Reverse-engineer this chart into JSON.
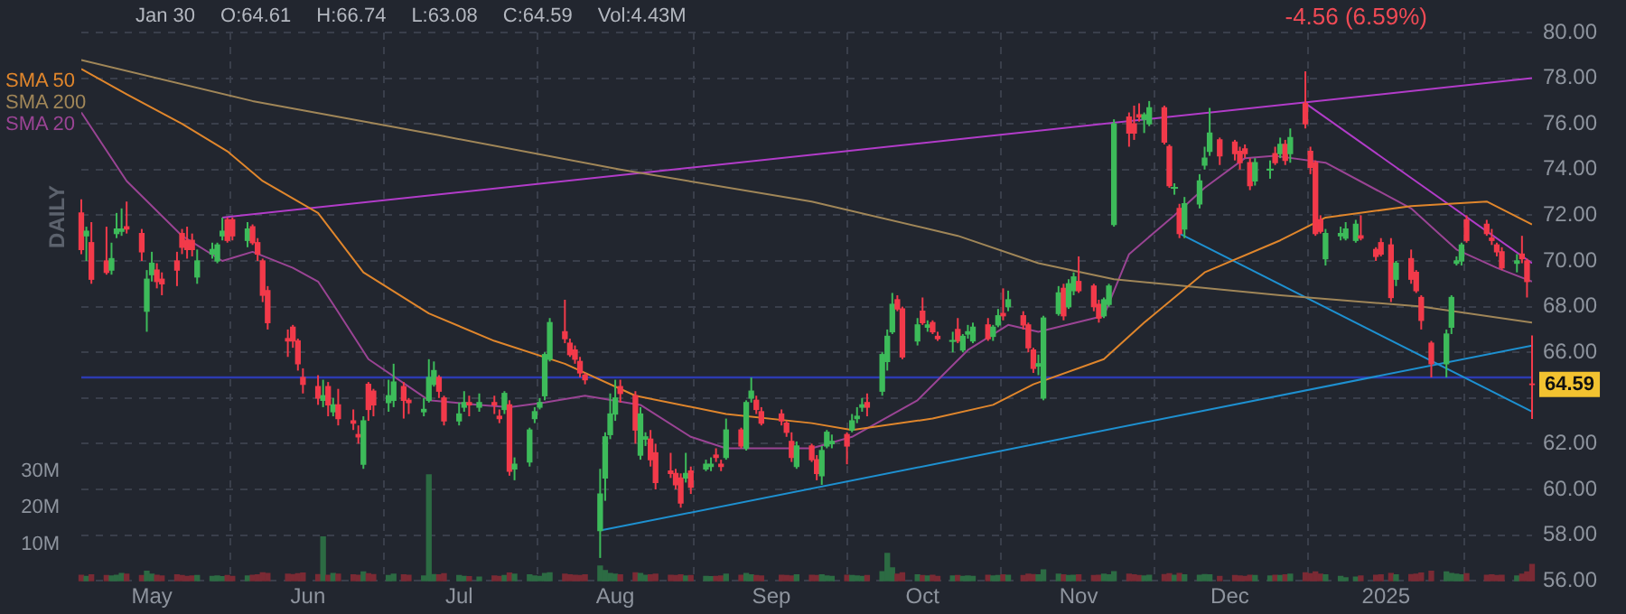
{
  "chart_data": {
    "type": "candlestick",
    "subtitle": "-4.56 (6.59%)",
    "annotations": [
      "Jan 30",
      "O:64.61",
      "H:66.74",
      "L:63.08",
      "C:64.59",
      "Vol:4.43M",
      {
        "text": "64.59",
        "x": "2025-01-30",
        "y": 64.59
      },
      "DAILY"
    ],
    "x": [
      "2024-04-17",
      "2024-04-18",
      "2024-04-19",
      "2024-04-22",
      "2024-04-23",
      "2024-04-24",
      "2024-04-25",
      "2024-04-26",
      "2024-04-29",
      "2024-04-30",
      "2024-05-01",
      "2024-05-02",
      "2024-05-03",
      "2024-05-06",
      "2024-05-07",
      "2024-05-08",
      "2024-05-09",
      "2024-05-10",
      "2024-05-13",
      "2024-05-14",
      "2024-05-15",
      "2024-05-16",
      "2024-05-17",
      "2024-05-20",
      "2024-05-21",
      "2024-05-22",
      "2024-05-23",
      "2024-05-24",
      "2024-05-28",
      "2024-05-29",
      "2024-05-30",
      "2024-05-31",
      "2024-06-03",
      "2024-06-04",
      "2024-06-05",
      "2024-06-06",
      "2024-06-07",
      "2024-06-10",
      "2024-06-11",
      "2024-06-12",
      "2024-06-13",
      "2024-06-14",
      "2024-06-17",
      "2024-06-18",
      "2024-06-20",
      "2024-06-21",
      "2024-06-24",
      "2024-06-25",
      "2024-06-26",
      "2024-06-27",
      "2024-06-28",
      "2024-07-01",
      "2024-07-02",
      "2024-07-03",
      "2024-07-05",
      "2024-07-08",
      "2024-07-09",
      "2024-07-10",
      "2024-07-11",
      "2024-07-12",
      "2024-07-15",
      "2024-07-16",
      "2024-07-17",
      "2024-07-18",
      "2024-07-19",
      "2024-07-22",
      "2024-07-23",
      "2024-07-24",
      "2024-07-25",
      "2024-07-26",
      "2024-07-29",
      "2024-07-30",
      "2024-07-31",
      "2024-08-01",
      "2024-08-02",
      "2024-08-05",
      "2024-08-06",
      "2024-08-07",
      "2024-08-08",
      "2024-08-09",
      "2024-08-12",
      "2024-08-13",
      "2024-08-14",
      "2024-08-15",
      "2024-08-16",
      "2024-08-19",
      "2024-08-20",
      "2024-08-21",
      "2024-08-22",
      "2024-08-23",
      "2024-08-26",
      "2024-08-27",
      "2024-08-28",
      "2024-08-29",
      "2024-08-30",
      "2024-09-03",
      "2024-09-04",
      "2024-09-05",
      "2024-09-06",
      "2024-09-09",
      "2024-09-10",
      "2024-09-11",
      "2024-09-12",
      "2024-09-13",
      "2024-09-16",
      "2024-09-17",
      "2024-09-18",
      "2024-09-19",
      "2024-09-20",
      "2024-09-23",
      "2024-09-24",
      "2024-09-25",
      "2024-09-26",
      "2024-09-27",
      "2024-09-30",
      "2024-10-01",
      "2024-10-02",
      "2024-10-03",
      "2024-10-04",
      "2024-10-07",
      "2024-10-08",
      "2024-10-09",
      "2024-10-10",
      "2024-10-11",
      "2024-10-14",
      "2024-10-15",
      "2024-10-16",
      "2024-10-17",
      "2024-10-18",
      "2024-10-21",
      "2024-10-22",
      "2024-10-23",
      "2024-10-24",
      "2024-10-25",
      "2024-10-28",
      "2024-10-29",
      "2024-10-30",
      "2024-10-31",
      "2024-11-01",
      "2024-11-04",
      "2024-11-05",
      "2024-11-06",
      "2024-11-07",
      "2024-11-08",
      "2024-11-11",
      "2024-11-12",
      "2024-11-13",
      "2024-11-14",
      "2024-11-15",
      "2024-11-18",
      "2024-11-19",
      "2024-11-20",
      "2024-11-21",
      "2024-11-22",
      "2024-11-25",
      "2024-11-26",
      "2024-11-27",
      "2024-11-29",
      "2024-12-02",
      "2024-12-03",
      "2024-12-04",
      "2024-12-05",
      "2024-12-06",
      "2024-12-09",
      "2024-12-10",
      "2024-12-11",
      "2024-12-12",
      "2024-12-13",
      "2024-12-16",
      "2024-12-17",
      "2024-12-18",
      "2024-12-19",
      "2024-12-20",
      "2024-12-23",
      "2024-12-24",
      "2024-12-26",
      "2024-12-27",
      "2024-12-30",
      "2024-12-31",
      "2025-01-02",
      "2025-01-03",
      "2025-01-06",
      "2025-01-07",
      "2025-01-08",
      "2025-01-10",
      "2025-01-13",
      "2025-01-14",
      "2025-01-15",
      "2025-01-16",
      "2025-01-17",
      "2025-01-21",
      "2025-01-22",
      "2025-01-23",
      "2025-01-24",
      "2025-01-27",
      "2025-01-28",
      "2025-01-29",
      "2025-01-30"
    ],
    "ohlc": [
      [
        72.1,
        72.7,
        70.3,
        70.5
      ],
      [
        71.1,
        71.5,
        70.0,
        71.3
      ],
      [
        70.8,
        71.7,
        69.0,
        69.2
      ],
      [
        70.0,
        71.5,
        69.4,
        69.5
      ],
      [
        69.6,
        70.8,
        69.4,
        70.1
      ],
      [
        71.2,
        72.1,
        71.0,
        71.4
      ],
      [
        71.3,
        72.3,
        71.1,
        71.4
      ],
      [
        71.5,
        72.6,
        71.2,
        71.4
      ],
      [
        71.2,
        71.4,
        70.0,
        70.4
      ],
      [
        67.8,
        69.6,
        66.9,
        69.2
      ],
      [
        69.4,
        70.4,
        69.1,
        69.9
      ],
      [
        69.6,
        69.9,
        68.8,
        69.1
      ],
      [
        69.2,
        69.5,
        68.5,
        69.0
      ],
      [
        70.0,
        70.4,
        68.9,
        69.6
      ],
      [
        71.2,
        71.4,
        70.3,
        70.6
      ],
      [
        70.9,
        71.5,
        70.1,
        70.5
      ],
      [
        70.9,
        71.2,
        70.2,
        70.5
      ],
      [
        69.3,
        70.5,
        69.0,
        70.0
      ],
      [
        70.3,
        70.8,
        70.1,
        70.5
      ],
      [
        70.0,
        70.8,
        69.9,
        70.7
      ],
      [
        71.1,
        71.9,
        70.9,
        71.3
      ],
      [
        71.8,
        71.9,
        70.8,
        70.9
      ],
      [
        71.8,
        71.9,
        70.9,
        71.1
      ],
      [
        70.9,
        71.7,
        70.6,
        71.4
      ],
      [
        71.5,
        71.6,
        70.7,
        70.8
      ],
      [
        70.8,
        71.0,
        70.0,
        70.3
      ],
      [
        70.0,
        70.1,
        68.2,
        68.5
      ],
      [
        68.7,
        68.9,
        67.0,
        67.3
      ],
      [
        66.6,
        67.0,
        65.8,
        66.5
      ],
      [
        67.1,
        67.2,
        66.2,
        66.5
      ],
      [
        66.5,
        66.6,
        65.2,
        65.5
      ],
      [
        64.9,
        65.3,
        64.2,
        64.6
      ],
      [
        64.5,
        65.0,
        63.7,
        64.0
      ],
      [
        63.9,
        64.8,
        63.6,
        64.1
      ],
      [
        64.5,
        64.7,
        63.2,
        63.7
      ],
      [
        63.4,
        64.0,
        63.2,
        63.7
      ],
      [
        63.7,
        64.4,
        62.8,
        63.1
      ],
      [
        63.0,
        63.5,
        62.6,
        62.9
      ],
      [
        62.4,
        62.8,
        62.0,
        62.3
      ],
      [
        61.1,
        63.2,
        60.9,
        63.0
      ],
      [
        64.6,
        64.7,
        63.0,
        63.5
      ],
      [
        64.3,
        64.4,
        63.2,
        63.7
      ],
      [
        63.8,
        64.8,
        63.4,
        64.1
      ],
      [
        63.9,
        65.5,
        63.6,
        64.7
      ],
      [
        64.5,
        64.7,
        63.1,
        63.9
      ],
      [
        63.9,
        64.0,
        63.3,
        63.8
      ],
      [
        63.4,
        64.0,
        63.2,
        63.5
      ],
      [
        63.9,
        65.7,
        63.8,
        64.9
      ],
      [
        64.6,
        65.6,
        64.5,
        65.2
      ],
      [
        64.9,
        65.0,
        64.0,
        64.3
      ],
      [
        64.0,
        64.1,
        62.8,
        63.0
      ],
      [
        63.0,
        63.8,
        62.8,
        63.3
      ],
      [
        63.6,
        64.3,
        63.4,
        63.8
      ],
      [
        63.8,
        64.1,
        63.2,
        63.7
      ],
      [
        63.6,
        64.2,
        63.4,
        63.8
      ],
      [
        63.8,
        64.1,
        63.3,
        63.7
      ],
      [
        63.2,
        63.5,
        62.9,
        63.1
      ],
      [
        63.5,
        64.3,
        63.3,
        64.2
      ],
      [
        63.7,
        63.9,
        60.6,
        60.8
      ],
      [
        60.9,
        61.4,
        60.4,
        61.1
      ],
      [
        61.2,
        62.7,
        61.0,
        62.6
      ],
      [
        63.1,
        63.6,
        62.9,
        63.4
      ],
      [
        63.6,
        64.0,
        63.5,
        63.8
      ],
      [
        64.1,
        66.0,
        63.9,
        65.9
      ],
      [
        65.7,
        67.5,
        65.6,
        67.3
      ],
      [
        66.9,
        68.3,
        66.4,
        66.6
      ],
      [
        66.4,
        66.6,
        65.8,
        65.9
      ],
      [
        66.1,
        66.3,
        65.5,
        65.7
      ],
      [
        65.6,
        65.8,
        64.9,
        65.1
      ],
      [
        65.0,
        65.1,
        64.6,
        64.8
      ],
      [
        58.2,
        60.9,
        57.0,
        59.8
      ],
      [
        60.5,
        62.5,
        59.5,
        62.3
      ],
      [
        62.4,
        64.2,
        62.2,
        63.3
      ],
      [
        63.3,
        64.8,
        63.0,
        64.0
      ],
      [
        64.5,
        64.8,
        63.8,
        64.2
      ],
      [
        64.1,
        64.3,
        62.0,
        62.6
      ],
      [
        61.5,
        63.6,
        61.3,
        63.3
      ],
      [
        62.2,
        62.5,
        61.9,
        62.3
      ],
      [
        62.2,
        62.6,
        61.0,
        61.3
      ],
      [
        61.6,
        62.0,
        60.0,
        60.3
      ],
      [
        60.8,
        61.6,
        60.5,
        60.7
      ],
      [
        60.7,
        60.9,
        60.0,
        60.2
      ],
      [
        60.5,
        60.7,
        59.2,
        59.4
      ],
      [
        60.5,
        61.6,
        60.3,
        60.7
      ],
      [
        60.8,
        61.0,
        59.8,
        60.1
      ],
      [
        60.9,
        61.3,
        60.8,
        61.1
      ],
      [
        61.0,
        61.4,
        60.8,
        61.1
      ],
      [
        61.5,
        61.8,
        61.2,
        61.4
      ],
      [
        61.1,
        61.3,
        60.8,
        61.0
      ],
      [
        61.4,
        63.1,
        61.3,
        62.6
      ],
      [
        62.6,
        62.7,
        61.8,
        61.9
      ],
      [
        61.8,
        63.9,
        61.7,
        63.8
      ],
      [
        64.0,
        64.9,
        63.8,
        64.3
      ],
      [
        63.9,
        64.1,
        63.3,
        63.5
      ],
      [
        63.4,
        63.6,
        62.8,
        62.9
      ],
      [
        63.3,
        63.5,
        62.8,
        63.0
      ],
      [
        62.9,
        63.0,
        62.3,
        62.5
      ],
      [
        62.1,
        62.5,
        61.2,
        61.4
      ],
      [
        61.0,
        62.1,
        60.9,
        61.9
      ],
      [
        61.9,
        62.0,
        61.2,
        61.3
      ],
      [
        61.3,
        61.5,
        60.4,
        60.7
      ],
      [
        60.6,
        61.9,
        60.2,
        61.7
      ],
      [
        61.9,
        62.6,
        61.8,
        62.5
      ],
      [
        62.0,
        62.4,
        61.8,
        62.1
      ],
      [
        62.4,
        62.5,
        61.1,
        61.9
      ],
      [
        62.6,
        63.3,
        62.5,
        63.0
      ],
      [
        63.1,
        63.6,
        62.9,
        63.2
      ],
      [
        63.6,
        64.0,
        63.4,
        63.7
      ],
      [
        63.8,
        64.2,
        63.2,
        63.6
      ],
      [
        64.3,
        66.0,
        64.1,
        65.9
      ],
      [
        65.6,
        67.0,
        65.2,
        66.7
      ],
      [
        66.9,
        68.6,
        66.8,
        68.1
      ],
      [
        68.3,
        68.5,
        67.8,
        67.9
      ],
      [
        67.9,
        68.0,
        65.7,
        65.8
      ],
      [
        66.5,
        67.5,
        66.3,
        67.2
      ],
      [
        67.8,
        68.4,
        67.2,
        67.3
      ],
      [
        67.1,
        67.4,
        66.9,
        67.2
      ],
      [
        67.3,
        67.4,
        66.8,
        66.9
      ],
      [
        66.7,
        66.9,
        66.5,
        66.6
      ],
      [
        66.5,
        66.9,
        66.0,
        66.5
      ],
      [
        67.0,
        67.5,
        66.4,
        66.5
      ],
      [
        66.1,
        66.8,
        66.0,
        66.7
      ],
      [
        66.8,
        67.2,
        66.6,
        66.9
      ],
      [
        66.5,
        67.3,
        66.4,
        67.1
      ],
      [
        67.2,
        67.5,
        66.5,
        66.6
      ],
      [
        66.7,
        67.2,
        66.5,
        67.1
      ],
      [
        67.2,
        67.9,
        67.1,
        67.6
      ],
      [
        67.7,
        68.8,
        67.4,
        67.6
      ],
      [
        68.0,
        68.7,
        67.8,
        68.3
      ],
      [
        67.6,
        67.8,
        67.0,
        67.2
      ],
      [
        67.2,
        67.3,
        66.0,
        66.2
      ],
      [
        66.1,
        66.2,
        65.1,
        65.3
      ],
      [
        65.4,
        65.9,
        65.0,
        65.5
      ],
      [
        64.0,
        67.6,
        63.9,
        67.5
      ],
      [
        67.7,
        68.9,
        67.6,
        68.6
      ],
      [
        68.8,
        69.0,
        67.4,
        67.6
      ],
      [
        68.0,
        69.2,
        67.9,
        69.0
      ],
      [
        68.7,
        69.5,
        68.5,
        69.3
      ],
      [
        69.1,
        70.2,
        68.6,
        68.7
      ],
      [
        68.9,
        69.0,
        67.8,
        68.0
      ],
      [
        68.1,
        68.3,
        67.3,
        67.5
      ],
      [
        67.6,
        68.4,
        67.5,
        68.3
      ],
      [
        68.1,
        69.0,
        68.0,
        68.9
      ],
      [
        71.6,
        76.2,
        71.5,
        76.0
      ],
      [
        76.3,
        76.5,
        75.0,
        75.6
      ],
      [
        76.0,
        76.8,
        75.3,
        75.6
      ],
      [
        76.4,
        76.9,
        76.1,
        76.3
      ],
      [
        76.2,
        76.5,
        75.6,
        76.4
      ],
      [
        76.0,
        77.0,
        75.9,
        76.7
      ],
      [
        76.7,
        76.8,
        75.1,
        75.2
      ],
      [
        75.0,
        75.1,
        73.2,
        73.3
      ],
      [
        73.2,
        73.4,
        72.9,
        73.2
      ],
      [
        72.3,
        72.5,
        71.0,
        71.2
      ],
      [
        71.4,
        72.8,
        71.0,
        72.5
      ],
      [
        72.5,
        73.8,
        72.3,
        73.5
      ],
      [
        74.2,
        75.0,
        74.0,
        74.5
      ],
      [
        74.8,
        76.7,
        74.6,
        75.6
      ],
      [
        75.3,
        75.4,
        74.2,
        74.6
      ],
      [
        75.2,
        75.3,
        74.4,
        74.7
      ],
      [
        74.8,
        75.0,
        74.0,
        74.3
      ],
      [
        74.9,
        75.1,
        74.5,
        74.7
      ],
      [
        74.3,
        74.5,
        73.1,
        73.3
      ],
      [
        73.5,
        74.5,
        73.3,
        74.3
      ],
      [
        74.0,
        74.4,
        73.6,
        74.0
      ],
      [
        74.7,
        75.0,
        74.2,
        74.3
      ],
      [
        74.7,
        75.4,
        74.5,
        75.1
      ],
      [
        75.1,
        75.3,
        74.2,
        74.4
      ],
      [
        74.7,
        75.8,
        74.3,
        75.4
      ],
      [
        76.9,
        78.3,
        75.8,
        76.0
      ],
      [
        74.8,
        75.0,
        73.8,
        74.1
      ],
      [
        74.3,
        74.4,
        71.1,
        71.2
      ],
      [
        71.8,
        72.0,
        71.2,
        71.3
      ],
      [
        70.1,
        71.4,
        69.8,
        71.2
      ],
      [
        71.1,
        71.5,
        70.9,
        71.2
      ],
      [
        71.0,
        71.7,
        70.9,
        71.4
      ],
      [
        70.9,
        71.8,
        70.8,
        71.6
      ],
      [
        71.1,
        72.0,
        70.9,
        71.0
      ],
      [
        70.5,
        70.6,
        70.0,
        70.2
      ],
      [
        70.8,
        71.0,
        70.2,
        70.3
      ],
      [
        70.7,
        71.0,
        68.2,
        68.4
      ],
      [
        69.2,
        70.0,
        68.9,
        69.9
      ],
      [
        70.1,
        70.5,
        69.0,
        69.2
      ],
      [
        69.5,
        69.6,
        68.6,
        68.7
      ],
      [
        68.4,
        68.5,
        67.0,
        67.4
      ],
      [
        66.4,
        66.5,
        64.9,
        65.5
      ],
      [
        65.5,
        67.0,
        64.9,
        66.8
      ],
      [
        67.1,
        68.5,
        66.8,
        68.4
      ],
      [
        69.9,
        70.2,
        69.8,
        70.0
      ],
      [
        70.0,
        70.8,
        69.8,
        70.7
      ],
      [
        71.8,
        72.0,
        70.8,
        70.9
      ],
      [
        71.6,
        71.8,
        71.1,
        71.2
      ],
      [
        71.0,
        71.4,
        70.7,
        70.9
      ],
      [
        70.7,
        70.8,
        70.2,
        70.4
      ],
      [
        70.4,
        70.6,
        69.6,
        69.7
      ],
      [
        69.9,
        70.3,
        69.5,
        70.0
      ],
      [
        70.3,
        71.1,
        69.9,
        70.1
      ],
      [
        70.0,
        70.1,
        68.4,
        69.1
      ],
      [
        64.61,
        66.74,
        63.08,
        64.59
      ]
    ],
    "colors": [
      "#f23a4a",
      "#3dbb5a",
      "#f23a4a",
      "#f23a4a",
      "#3dbb5a",
      "#3dbb5a",
      "#3dbb5a",
      "#f23a4a",
      "#f23a4a",
      "#3dbb5a",
      "#3dbb5a",
      "#f23a4a",
      "#f23a4a",
      "#f23a4a",
      "#f23a4a",
      "#f23a4a",
      "#f23a4a",
      "#3dbb5a",
      "#3dbb5a",
      "#3dbb5a",
      "#3dbb5a",
      "#f23a4a",
      "#f23a4a",
      "#3dbb5a",
      "#f23a4a",
      "#f23a4a",
      "#f23a4a",
      "#f23a4a",
      "#f23a4a",
      "#f23a4a",
      "#f23a4a",
      "#f23a4a",
      "#f23a4a",
      "#3dbb5a",
      "#f23a4a",
      "#3dbb5a",
      "#f23a4a",
      "#f23a4a",
      "#f23a4a",
      "#3dbb5a",
      "#f23a4a",
      "#f23a4a",
      "#3dbb5a",
      "#3dbb5a",
      "#f23a4a",
      "#f23a4a",
      "#3dbb5a",
      "#3dbb5a",
      "#3dbb5a",
      "#f23a4a",
      "#f23a4a",
      "#3dbb5a",
      "#3dbb5a",
      "#f23a4a",
      "#3dbb5a",
      "#f23a4a",
      "#f23a4a",
      "#3dbb5a",
      "#f23a4a",
      "#3dbb5a",
      "#3dbb5a",
      "#3dbb5a",
      "#3dbb5a",
      "#3dbb5a",
      "#3dbb5a",
      "#f23a4a",
      "#f23a4a",
      "#f23a4a",
      "#f23a4a",
      "#f23a4a",
      "#3dbb5a",
      "#3dbb5a",
      "#3dbb5a",
      "#3dbb5a",
      "#f23a4a",
      "#f23a4a",
      "#3dbb5a",
      "#3dbb5a",
      "#f23a4a",
      "#f23a4a",
      "#f23a4a",
      "#f23a4a",
      "#f23a4a",
      "#3dbb5a",
      "#f23a4a",
      "#3dbb5a",
      "#3dbb5a",
      "#f23a4a",
      "#f23a4a",
      "#3dbb5a",
      "#f23a4a",
      "#3dbb5a",
      "#3dbb5a",
      "#f23a4a",
      "#f23a4a",
      "#f23a4a",
      "#f23a4a",
      "#f23a4a",
      "#3dbb5a",
      "#f23a4a",
      "#f23a4a",
      "#3dbb5a",
      "#3dbb5a",
      "#3dbb5a",
      "#f23a4a",
      "#3dbb5a",
      "#3dbb5a",
      "#3dbb5a",
      "#f23a4a",
      "#3dbb5a",
      "#3dbb5a",
      "#3dbb5a",
      "#f23a4a",
      "#f23a4a",
      "#3dbb5a",
      "#f23a4a",
      "#3dbb5a",
      "#f23a4a",
      "#f23a4a",
      "#3dbb5a",
      "#f23a4a",
      "#3dbb5a",
      "#3dbb5a",
      "#3dbb5a",
      "#f23a4a",
      "#3dbb5a",
      "#3dbb5a",
      "#f23a4a",
      "#3dbb5a",
      "#f23a4a",
      "#f23a4a",
      "#f23a4a",
      "#3dbb5a",
      "#3dbb5a",
      "#3dbb5a",
      "#f23a4a",
      "#3dbb5a",
      "#3dbb5a",
      "#f23a4a",
      "#f23a4a",
      "#f23a4a",
      "#3dbb5a",
      "#3dbb5a",
      "#3dbb5a",
      "#f23a4a",
      "#f23a4a",
      "#f23a4a",
      "#3dbb5a",
      "#3dbb5a",
      "#f23a4a",
      "#f23a4a",
      "#3dbb5a",
      "#f23a4a",
      "#3dbb5a",
      "#3dbb5a",
      "#3dbb5a",
      "#3dbb5a",
      "#f23a4a",
      "#f23a4a",
      "#f23a4a",
      "#f23a4a",
      "#f23a4a",
      "#3dbb5a",
      "#3dbb5a",
      "#f23a4a",
      "#3dbb5a",
      "#f23a4a",
      "#3dbb5a",
      "#f23a4a",
      "#f23a4a",
      "#f23a4a",
      "#f23a4a",
      "#3dbb5a",
      "#3dbb5a",
      "#3dbb5a",
      "#3dbb5a",
      "#f23a4a",
      "#f23a4a",
      "#f23a4a",
      "#f23a4a",
      "#3dbb5a",
      "#f23a4a",
      "#f23a4a",
      "#f23a4a",
      "#f23a4a",
      "#3dbb5a",
      "#3dbb5a",
      "#3dbb5a",
      "#3dbb5a",
      "#f23a4a",
      "#f23a4a",
      "#f23a4a",
      "#f23a4a",
      "#f23a4a",
      "#3dbb5a",
      "#f23a4a",
      "#f23a4a",
      "#f23a4a"
    ],
    "series": [
      {
        "type": "bar",
        "axis": "y2",
        "values": [
          1.5,
          1.2,
          1.6,
          1.4,
          1.3,
          1.5,
          2.0,
          1.8,
          1.4,
          2.6,
          1.8,
          1.5,
          1.3,
          1.6,
          1.4,
          1.2,
          1.3,
          1.4,
          1.2,
          1.3,
          1.1,
          1.4,
          1.2,
          1.3,
          1.5,
          1.6,
          2.2,
          2.0,
          1.8,
          1.7,
          1.9,
          2.1,
          1.7,
          12.0,
          1.5,
          2.0,
          1.8,
          1.6,
          1.5,
          2.4,
          1.9,
          1.7,
          1.4,
          1.8,
          1.6,
          1.5,
          1.3,
          29.0,
          1.7,
          1.6,
          1.9,
          1.4,
          1.2,
          1.1,
          1.0,
          1.3,
          1.2,
          1.4,
          2.1,
          1.8,
          1.6,
          1.3,
          1.2,
          2.0,
          2.2,
          1.8,
          1.6,
          1.5,
          1.4,
          1.6,
          4.0,
          2.8,
          2.0,
          1.8,
          1.6,
          2.2,
          2.0,
          1.5,
          1.6,
          1.8,
          1.5,
          1.4,
          1.6,
          1.3,
          1.4,
          1.2,
          1.1,
          1.2,
          1.3,
          1.8,
          1.5,
          2.0,
          1.6,
          1.4,
          1.3,
          1.5,
          1.4,
          1.3,
          1.6,
          1.5,
          1.4,
          1.6,
          1.3,
          1.2,
          1.5,
          1.4,
          1.3,
          1.2,
          1.4,
          2.5,
          7.5,
          3.5,
          1.8,
          2.2,
          1.6,
          1.4,
          1.3,
          1.5,
          1.2,
          1.3,
          1.4,
          1.2,
          1.3,
          1.2,
          1.5,
          1.3,
          1.4,
          1.6,
          1.5,
          1.4,
          1.8,
          1.7,
          1.6,
          3.0,
          1.8,
          1.6,
          1.4,
          1.5,
          1.6,
          1.4,
          1.5,
          1.8,
          1.6,
          2.5,
          1.8,
          1.6,
          1.4,
          1.3,
          1.5,
          1.7,
          1.9,
          1.5,
          2.0,
          1.6,
          1.5,
          1.7,
          1.6,
          1.2,
          1.4,
          1.3,
          1.2,
          1.5,
          1.4,
          1.3,
          1.5,
          1.4,
          1.6,
          1.8,
          2.2,
          1.9,
          2.4,
          1.8,
          1.6,
          1.2,
          0.8,
          1.0,
          1.3,
          1.5,
          1.6,
          2.0,
          1.6,
          1.7,
          1.8,
          2.1,
          2.6,
          2.4,
          2.0,
          1.8,
          1.6,
          1.9,
          1.5,
          1.6,
          1.4,
          1.5,
          1.3,
          1.8,
          2.4,
          4.43
        ],
        "colors": [
          "#7a2a34",
          "#2c6b43",
          "#7a2a34",
          "#7a2a34",
          "#2c6b43",
          "#2c6b43",
          "#2c6b43",
          "#7a2a34",
          "#7a2a34",
          "#2c6b43",
          "#2c6b43",
          "#7a2a34",
          "#7a2a34",
          "#7a2a34",
          "#7a2a34",
          "#7a2a34",
          "#7a2a34",
          "#2c6b43",
          "#2c6b43",
          "#2c6b43",
          "#2c6b43",
          "#7a2a34",
          "#7a2a34",
          "#2c6b43",
          "#7a2a34",
          "#7a2a34",
          "#7a2a34",
          "#7a2a34",
          "#7a2a34",
          "#7a2a34",
          "#7a2a34",
          "#7a2a34",
          "#7a2a34",
          "#2c6b43",
          "#7a2a34",
          "#2c6b43",
          "#7a2a34",
          "#7a2a34",
          "#7a2a34",
          "#2c6b43",
          "#7a2a34",
          "#7a2a34",
          "#2c6b43",
          "#2c6b43",
          "#7a2a34",
          "#7a2a34",
          "#2c6b43",
          "#2c6b43",
          "#2c6b43",
          "#7a2a34",
          "#7a2a34",
          "#2c6b43",
          "#2c6b43",
          "#7a2a34",
          "#2c6b43",
          "#7a2a34",
          "#7a2a34",
          "#2c6b43",
          "#7a2a34",
          "#2c6b43",
          "#2c6b43",
          "#2c6b43",
          "#2c6b43",
          "#2c6b43",
          "#2c6b43",
          "#7a2a34",
          "#7a2a34",
          "#7a2a34",
          "#7a2a34",
          "#7a2a34",
          "#2c6b43",
          "#2c6b43",
          "#2c6b43",
          "#2c6b43",
          "#7a2a34",
          "#7a2a34",
          "#2c6b43",
          "#2c6b43",
          "#7a2a34",
          "#7a2a34",
          "#7a2a34",
          "#7a2a34",
          "#7a2a34",
          "#2c6b43",
          "#7a2a34",
          "#2c6b43",
          "#2c6b43",
          "#7a2a34",
          "#7a2a34",
          "#2c6b43",
          "#7a2a34",
          "#2c6b43",
          "#2c6b43",
          "#7a2a34",
          "#7a2a34",
          "#7a2a34",
          "#7a2a34",
          "#7a2a34",
          "#2c6b43",
          "#7a2a34",
          "#7a2a34",
          "#2c6b43",
          "#2c6b43",
          "#2c6b43",
          "#7a2a34",
          "#2c6b43",
          "#2c6b43",
          "#2c6b43",
          "#7a2a34",
          "#2c6b43",
          "#2c6b43",
          "#2c6b43",
          "#7a2a34",
          "#7a2a34",
          "#2c6b43",
          "#7a2a34",
          "#2c6b43",
          "#7a2a34",
          "#7a2a34",
          "#2c6b43",
          "#7a2a34",
          "#2c6b43",
          "#2c6b43",
          "#2c6b43",
          "#7a2a34",
          "#2c6b43",
          "#2c6b43",
          "#7a2a34",
          "#2c6b43",
          "#7a2a34",
          "#7a2a34",
          "#7a2a34",
          "#2c6b43",
          "#2c6b43",
          "#2c6b43",
          "#7a2a34",
          "#2c6b43",
          "#2c6b43",
          "#7a2a34",
          "#7a2a34",
          "#7a2a34",
          "#2c6b43",
          "#2c6b43",
          "#2c6b43",
          "#7a2a34",
          "#7a2a34",
          "#7a2a34",
          "#2c6b43",
          "#2c6b43",
          "#7a2a34",
          "#7a2a34",
          "#2c6b43",
          "#7a2a34",
          "#2c6b43",
          "#2c6b43",
          "#2c6b43",
          "#2c6b43",
          "#7a2a34",
          "#7a2a34",
          "#7a2a34",
          "#7a2a34",
          "#7a2a34",
          "#2c6b43",
          "#2c6b43",
          "#7a2a34",
          "#2c6b43",
          "#7a2a34",
          "#2c6b43",
          "#7a2a34",
          "#7a2a34",
          "#7a2a34",
          "#7a2a34",
          "#2c6b43",
          "#2c6b43",
          "#2c6b43",
          "#2c6b43",
          "#7a2a34",
          "#7a2a34",
          "#7a2a34",
          "#7a2a34",
          "#2c6b43",
          "#7a2a34",
          "#7a2a34",
          "#7a2a34",
          "#7a2a34",
          "#2c6b43",
          "#2c6b43",
          "#2c6b43",
          "#2c6b43",
          "#7a2a34",
          "#7a2a34",
          "#7a2a34",
          "#7a2a34",
          "#7a2a34",
          "#2c6b43",
          "#7a2a34",
          "#7a2a34",
          "#7a2a34"
        ]
      },
      {
        "type": "line",
        "name": "SMA 50",
        "color": "#e0862c",
        "x": [
          "2024-04-17",
          "2024-04-26",
          "2024-05-07",
          "2024-05-16",
          "2024-05-23",
          "2024-06-03",
          "2024-06-12",
          "2024-06-25",
          "2024-07-08",
          "2024-07-22",
          "2024-08-05",
          "2024-08-23",
          "2024-09-09",
          "2024-09-17",
          "2024-10-03",
          "2024-10-15",
          "2024-10-23",
          "2024-11-06",
          "2024-11-14",
          "2024-11-26",
          "2024-12-11",
          "2024-12-20",
          "2025-01-06",
          "2025-01-21",
          "2025-01-30"
        ],
        "values": [
          78.4,
          77.3,
          76.0,
          74.8,
          73.5,
          72.1,
          69.5,
          67.7,
          66.5,
          65.5,
          64.1,
          63.3,
          62.9,
          62.6,
          63.1,
          63.7,
          64.6,
          65.7,
          67.3,
          69.5,
          70.9,
          71.9,
          72.4,
          72.6,
          71.6
        ]
      },
      {
        "type": "line",
        "name": "SMA 200",
        "color": "#a08658",
        "x": [
          "2024-04-17",
          "2024-05-21",
          "2024-06-27",
          "2024-08-02",
          "2024-09-09",
          "2024-10-08",
          "2024-10-24",
          "2024-11-08",
          "2024-12-11",
          "2025-01-08",
          "2025-01-30"
        ],
        "values": [
          78.8,
          77.0,
          75.5,
          74.0,
          72.6,
          71.1,
          69.9,
          69.2,
          68.5,
          68.0,
          67.3
        ]
      },
      {
        "type": "line",
        "name": "SMA 20",
        "color": "#9a4494",
        "x": [
          "2024-04-17",
          "2024-04-26",
          "2024-05-07",
          "2024-05-15",
          "2024-05-21",
          "2024-05-29",
          "2024-06-03",
          "2024-06-06",
          "2024-06-13",
          "2024-06-25",
          "2024-07-05",
          "2024-07-11",
          "2024-07-18",
          "2024-07-26",
          "2024-08-06",
          "2024-08-16",
          "2024-08-23",
          "2024-09-09",
          "2024-09-17",
          "2024-09-30",
          "2024-10-10",
          "2024-10-18",
          "2024-10-24",
          "2024-11-06",
          "2024-11-11",
          "2024-11-20",
          "2024-11-26",
          "2024-12-04",
          "2024-12-10",
          "2024-12-20",
          "2025-01-06",
          "2025-01-15",
          "2025-01-23",
          "2025-01-30"
        ],
        "values": [
          76.5,
          73.5,
          71.1,
          70.0,
          70.4,
          69.7,
          69.1,
          68.1,
          65.7,
          63.9,
          63.7,
          63.6,
          63.8,
          64.1,
          63.7,
          62.3,
          61.8,
          61.8,
          62.3,
          63.9,
          66.1,
          67.2,
          66.9,
          67.6,
          70.3,
          72.0,
          73.2,
          74.5,
          74.6,
          74.3,
          72.3,
          70.5,
          69.7,
          69.1
        ]
      },
      {
        "type": "line",
        "color": "#b23cc9",
        "x": [
          "2024-05-15",
          "2025-01-30"
        ],
        "values": [
          71.9,
          78.0
        ]
      },
      {
        "type": "line",
        "color": "#b23cc9",
        "x": [
          "2024-12-16",
          "2025-01-30"
        ],
        "values": [
          76.9,
          69.9
        ]
      },
      {
        "type": "line",
        "color": "#1e90d0",
        "x": [
          "2024-07-29",
          "2025-01-30"
        ],
        "values": [
          58.2,
          66.3
        ]
      },
      {
        "type": "line",
        "color": "#1e90d0",
        "x": [
          "2024-11-21",
          "2025-01-30"
        ],
        "values": [
          71.2,
          63.4
        ]
      }
    ],
    "ref_lines": [
      {
        "axis": "y",
        "value": 64.9,
        "color": "#2c3bb0"
      }
    ],
    "xlim": [
      "2024-04-17",
      "2025-01-30"
    ],
    "xticks": [
      {
        "value": "2024-05-01",
        "label": "May"
      },
      {
        "value": "2024-06-01",
        "label": "Jun"
      },
      {
        "value": "2024-07-01",
        "label": "Jul"
      },
      {
        "value": "2024-08-01",
        "label": "Aug"
      },
      {
        "value": "2024-09-01",
        "label": "Sep"
      },
      {
        "value": "2024-10-01",
        "label": "Oct"
      },
      {
        "value": "2024-11-01",
        "label": "Nov"
      },
      {
        "value": "2024-12-01",
        "label": "Dec"
      },
      {
        "value": "2025-01-01",
        "label": "2025"
      }
    ],
    "ylim": [
      56,
      80
    ],
    "yticks": [
      {
        "value": 56,
        "label": "56.00"
      },
      {
        "value": 58,
        "label": "58.00"
      },
      {
        "value": 60,
        "label": "60.00"
      },
      {
        "value": 62,
        "label": "62.00"
      },
      {
        "value": 64,
        "label": null
      },
      {
        "value": 66,
        "label": "66.00"
      },
      {
        "value": 68,
        "label": "68.00"
      },
      {
        "value": 70,
        "label": "70.00"
      },
      {
        "value": 72,
        "label": "72.00"
      },
      {
        "value": 74,
        "label": "74.00"
      },
      {
        "value": 76,
        "label": "76.00"
      },
      {
        "value": 78,
        "label": "78.00"
      },
      {
        "value": 80,
        "label": "80.00"
      }
    ],
    "y2lim": [
      0,
      150
    ],
    "y2ticks": [
      {
        "value": 10,
        "label": "10M"
      },
      {
        "value": 20,
        "label": "20M"
      },
      {
        "value": 30,
        "label": "30M"
      }
    ],
    "grid": true,
    "legend": "top left",
    "marker": "none"
  }
}
